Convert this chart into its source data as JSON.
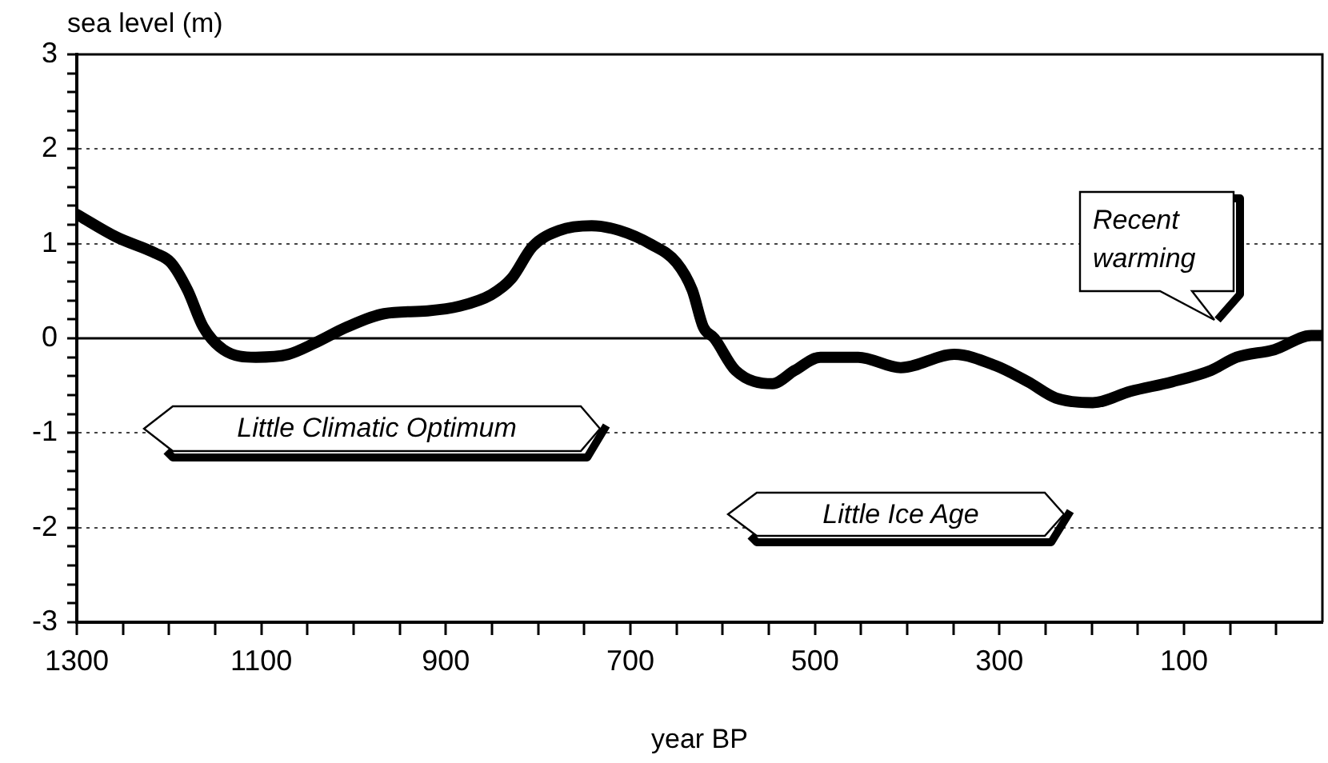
{
  "chart_data": {
    "type": "line",
    "ylabel": "sea level (m)",
    "xlabel": "year BP",
    "x": [
      1300,
      1257,
      1215,
      1198,
      1180,
      1163,
      1141,
      1106,
      1071,
      1042,
      1007,
      967,
      920,
      885,
      851,
      829,
      806,
      777,
      742,
      712,
      677,
      650,
      633,
      621,
      609,
      586,
      546,
      522,
      494,
      453,
      407,
      349,
      304,
      269,
      239,
      199,
      158,
      113,
      71,
      43,
      2,
      -38,
      -50
    ],
    "series": [
      {
        "color": "#000000",
        "values": [
          1.31,
          1.07,
          0.9,
          0.8,
          0.51,
          0.12,
          -0.12,
          -0.2,
          -0.17,
          -0.05,
          0.12,
          0.26,
          0.29,
          0.34,
          0.46,
          0.63,
          0.97,
          1.14,
          1.19,
          1.14,
          0.99,
          0.8,
          0.51,
          0.12,
          0,
          -0.34,
          -0.48,
          -0.34,
          -0.2,
          -0.2,
          -0.31,
          -0.17,
          -0.29,
          -0.46,
          -0.63,
          -0.68,
          -0.56,
          -0.46,
          -0.34,
          -0.2,
          -0.12,
          0.03,
          0.03
        ]
      }
    ],
    "xlim": [
      1300,
      -50
    ],
    "xticks": [
      1300,
      {
        "value": 1250,
        "label": null
      },
      {
        "value": 1200,
        "label": null
      },
      {
        "value": 1150,
        "label": null
      },
      1100,
      {
        "value": 1050,
        "label": null
      },
      {
        "value": 1000,
        "label": null
      },
      {
        "value": 950,
        "label": null
      },
      900,
      {
        "value": 850,
        "label": null
      },
      {
        "value": 800,
        "label": null
      },
      {
        "value": 750,
        "label": null
      },
      700,
      {
        "value": 650,
        "label": null
      },
      {
        "value": 600,
        "label": null
      },
      {
        "value": 550,
        "label": null
      },
      500,
      {
        "value": 450,
        "label": null
      },
      {
        "value": 400,
        "label": null
      },
      {
        "value": 350,
        "label": null
      },
      300,
      {
        "value": 250,
        "label": null
      },
      {
        "value": 200,
        "label": null
      },
      {
        "value": 150,
        "label": null
      },
      100,
      {
        "value": 50,
        "label": null
      },
      {
        "value": 0,
        "label": null
      }
    ],
    "ylim": [
      -3,
      3
    ],
    "yticks": [
      -3,
      {
        "value": -2.8,
        "label": null
      },
      {
        "value": -2.6,
        "label": null
      },
      {
        "value": -2.4,
        "label": null
      },
      {
        "value": -2.2,
        "label": null
      },
      -2,
      {
        "value": -1.8,
        "label": null
      },
      {
        "value": -1.6,
        "label": null
      },
      {
        "value": -1.4,
        "label": null
      },
      {
        "value": -1.2,
        "label": null
      },
      -1,
      {
        "value": -0.8,
        "label": null
      },
      {
        "value": -0.6,
        "label": null
      },
      {
        "value": -0.4,
        "label": null
      },
      {
        "value": -0.2,
        "label": null
      },
      0,
      {
        "value": 0.2,
        "label": null
      },
      {
        "value": 0.4,
        "label": null
      },
      {
        "value": 0.6,
        "label": null
      },
      {
        "value": 0.8,
        "label": null
      },
      1,
      {
        "value": 1.2,
        "label": null
      },
      {
        "value": 1.4,
        "label": null
      },
      {
        "value": 1.6,
        "label": null
      },
      {
        "value": 1.8,
        "label": null
      },
      2,
      {
        "value": 2.2,
        "label": null
      },
      {
        "value": 2.4,
        "label": null
      },
      {
        "value": 2.6,
        "label": null
      },
      {
        "value": 2.8,
        "label": null
      },
      3
    ],
    "grid": "y",
    "legend": false,
    "marker": "none",
    "line_style": "solid",
    "ref_lines": [
      {
        "axis": "y",
        "value": 0,
        "color": "#000000"
      }
    ],
    "annotations": [
      "Little Climatic Optimum",
      "Little Ice Age",
      "Recent warming"
    ]
  }
}
